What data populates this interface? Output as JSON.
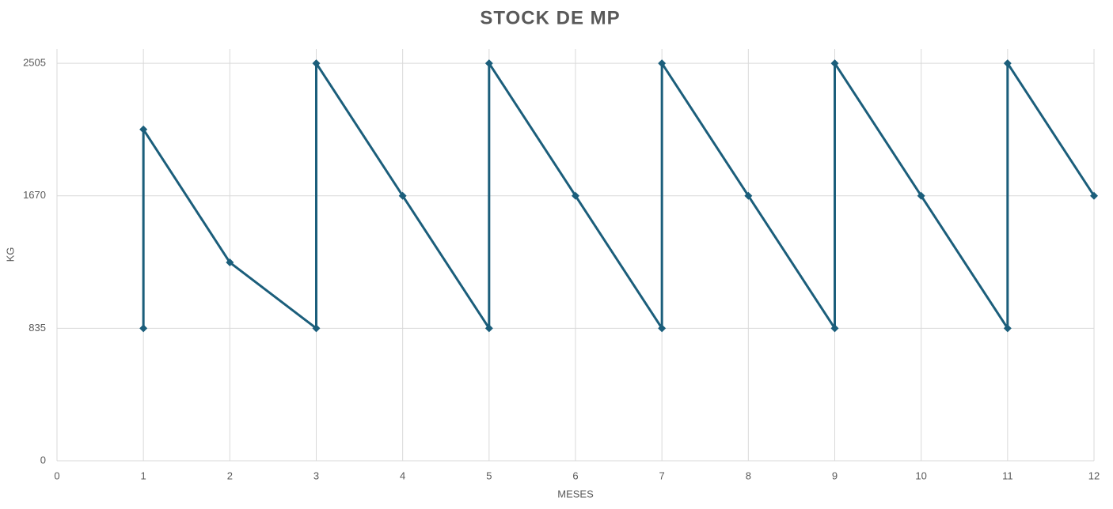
{
  "chart_data": {
    "type": "scatter",
    "title": "STOCK DE MP",
    "x_label": "MESES",
    "y_label": "KG",
    "series": [
      {
        "name": "Stock",
        "color": "#1b5e7b",
        "x": [
          1,
          1,
          2,
          3,
          3,
          4,
          5,
          5,
          6,
          7,
          7,
          8,
          9,
          9,
          10,
          11,
          11,
          12
        ],
        "values": [
          835,
          2088,
          1250,
          835,
          2505,
          1670,
          835,
          2505,
          1670,
          835,
          2505,
          1670,
          835,
          2505,
          1670,
          835,
          2505,
          1670
        ]
      }
    ],
    "xlim": [
      0,
      12
    ],
    "xticks": [
      0,
      1,
      2,
      3,
      4,
      5,
      6,
      7,
      8,
      9,
      10,
      11,
      12
    ],
    "ylim": [
      0,
      2595
    ],
    "yticks": [
      0,
      835,
      1670,
      2505
    ],
    "grid": true
  }
}
